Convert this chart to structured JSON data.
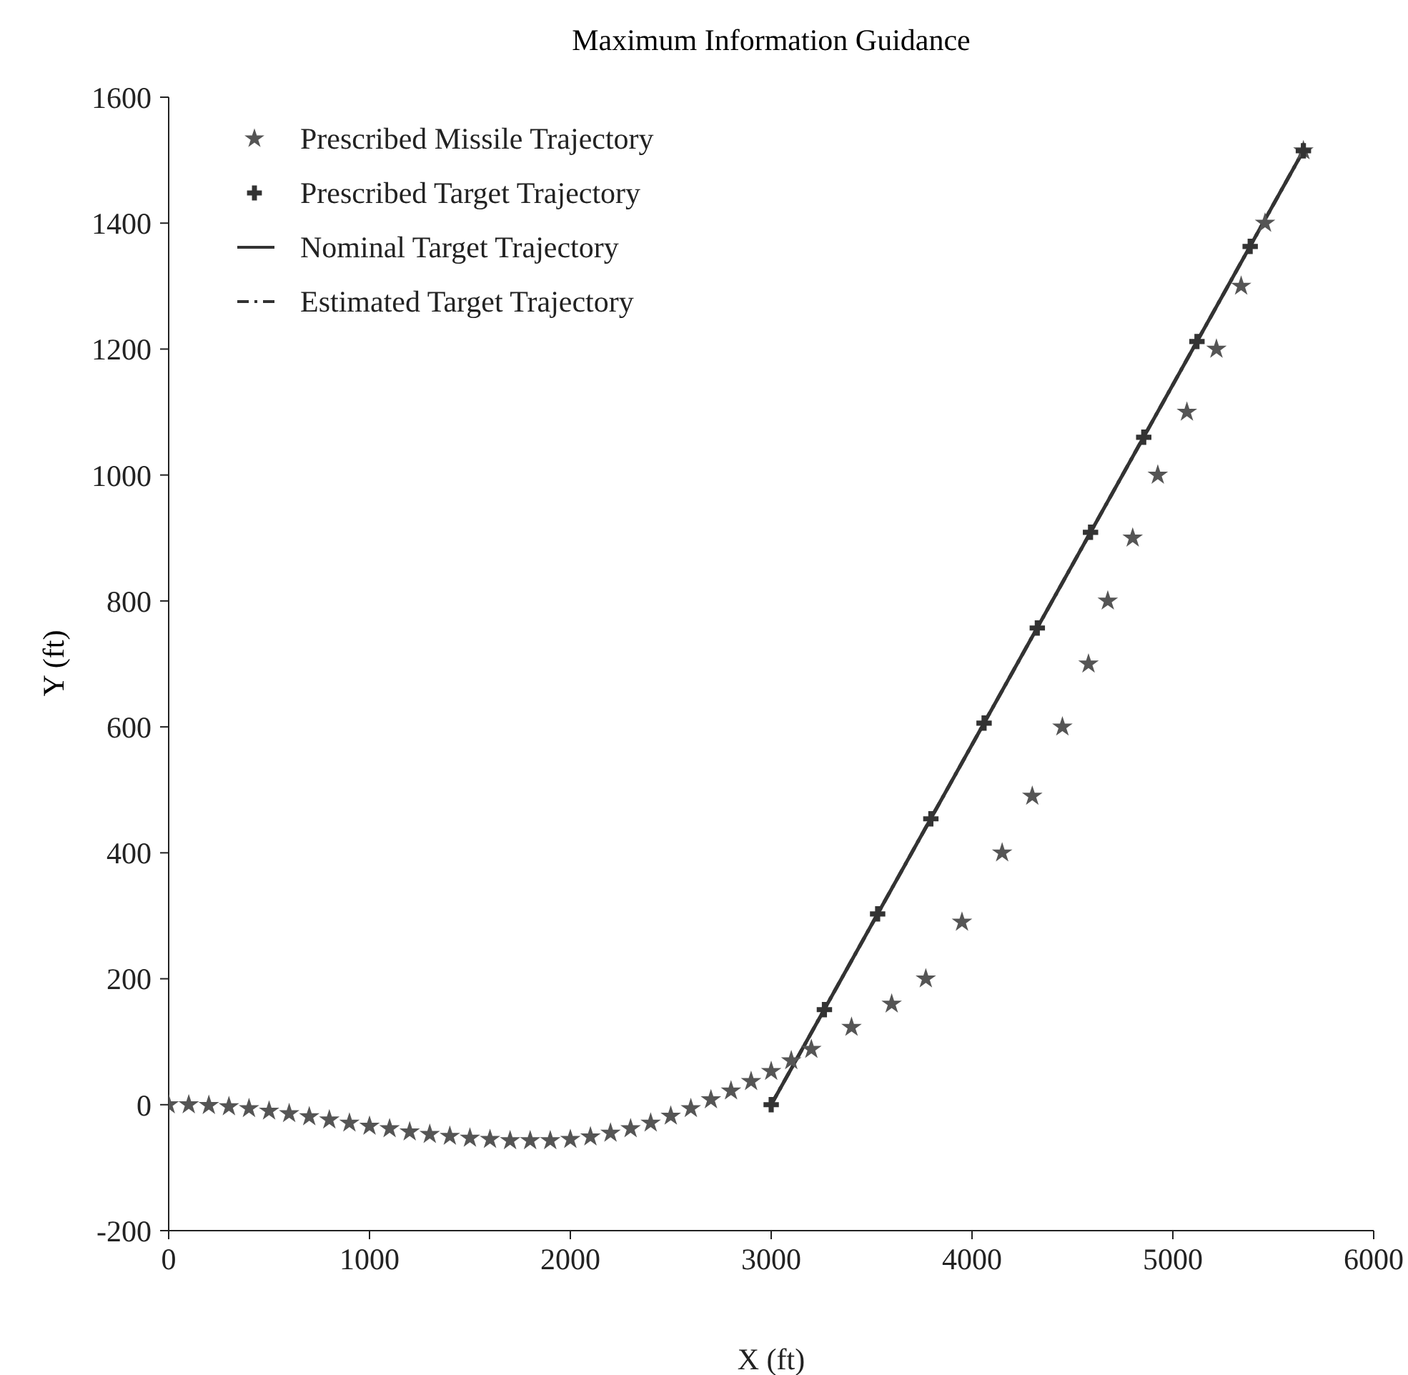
{
  "chart_data": {
    "type": "line",
    "title": "Maximum Information Guidance",
    "xlabel": "X (ft)",
    "ylabel": "Y (ft)",
    "xlim": [
      0,
      6000
    ],
    "xticks": [
      0,
      1000,
      2000,
      3000,
      4000,
      5000,
      6000
    ],
    "ylim": [
      -200,
      1600
    ],
    "yticks": [
      -200,
      0,
      200,
      400,
      600,
      800,
      1000,
      1200,
      1400,
      1600
    ],
    "grid": false,
    "legend": "top left",
    "series": [
      {
        "name": "Prescribed Missile Trajectory",
        "type": "scatter",
        "marker": "star",
        "color": "#555555",
        "x": [
          0,
          100,
          200,
          300,
          400,
          500,
          600,
          700,
          800,
          900,
          1000,
          1100,
          1200,
          1300,
          1400,
          1500,
          1600,
          1700,
          1800,
          1900,
          2000,
          2100,
          2200,
          2300,
          2400,
          2500,
          2600,
          2700,
          2800,
          2900,
          3000,
          3100,
          3200,
          3400,
          3600,
          3770,
          3950,
          4150,
          4300,
          4450,
          4580,
          4676,
          4800,
          4925,
          5070,
          5217,
          5340,
          5459,
          5650
        ],
        "values": [
          0,
          0,
          -1,
          -3,
          -6,
          -10,
          -14,
          -19,
          -24,
          -29,
          -34,
          -38,
          -43,
          -47,
          -50,
          -53,
          -55,
          -57,
          -57,
          -57,
          -55,
          -51,
          -45,
          -38,
          -29,
          -18,
          -6,
          8,
          22,
          37,
          53,
          70,
          88,
          123,
          160,
          200,
          290,
          400,
          490,
          600,
          700,
          800,
          900,
          1000,
          1100,
          1200,
          1300,
          1400,
          1515
        ]
      },
      {
        "name": "Prescribed Target Trajectory",
        "type": "scatter",
        "marker": "cross",
        "color": "#333333",
        "x": [
          3000,
          3265,
          3530,
          3795,
          4060,
          4325,
          4590,
          4855,
          5120,
          5385,
          5650
        ],
        "values": [
          0,
          151,
          303,
          454,
          606,
          757,
          909,
          1060,
          1212,
          1363,
          1515
        ]
      },
      {
        "name": "Nominal Target Trajectory",
        "marker": "none",
        "line_style": "solid",
        "color": "#333333",
        "x": [
          3000,
          5650
        ],
        "values": [
          0,
          1515
        ]
      },
      {
        "name": "Estimated Target Trajectory",
        "marker": "none",
        "line_style": "dashed",
        "color": "#333333",
        "x": [
          3000,
          5650
        ],
        "values": [
          0,
          1515
        ]
      }
    ]
  }
}
